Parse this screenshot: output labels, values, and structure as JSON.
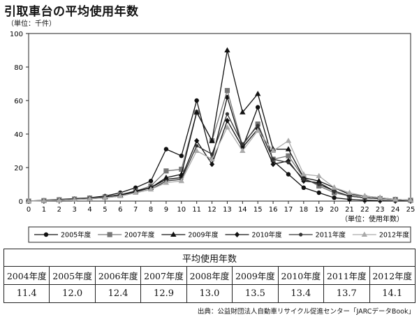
{
  "page": {
    "title": "引取車台の平均使用年数",
    "unit_label": "（単位：千件）",
    "source": "出典：公益財団法人自動車リサイクル促進センター「JARCデータBook」"
  },
  "chart_data": {
    "type": "line",
    "title": "引取車台の平均使用年数",
    "ylabel": "（単位：千件）",
    "xlabel": "（単位：使用年数）",
    "x": [
      0,
      1,
      2,
      3,
      4,
      5,
      6,
      7,
      8,
      9,
      10,
      11,
      12,
      13,
      14,
      15,
      16,
      17,
      18,
      19,
      20,
      21,
      22,
      23,
      24,
      25
    ],
    "xlim": [
      0,
      25
    ],
    "ylim": [
      0,
      100
    ],
    "yticks": [
      0,
      20,
      40,
      60,
      80,
      100
    ],
    "grid": false,
    "legend_position": "bottom",
    "series": [
      {
        "name": "2005年度",
        "marker": "circle",
        "color": "#111111",
        "values": [
          0,
          0.5,
          1,
          1.5,
          2,
          3,
          5,
          8,
          12,
          31,
          27,
          60,
          25,
          62,
          32,
          56,
          24,
          16,
          8,
          5,
          2,
          1,
          0.5,
          0.3,
          0.2,
          0.1
        ]
      },
      {
        "name": "2007年度",
        "marker": "square",
        "color": "#777777",
        "values": [
          0,
          0.3,
          0.8,
          1.2,
          1.8,
          2.5,
          4,
          6,
          9,
          18,
          19,
          53,
          36,
          66,
          33,
          46,
          25,
          27,
          14,
          9,
          5,
          3,
          2,
          1.5,
          1,
          0.5
        ]
      },
      {
        "name": "2009年度",
        "marker": "triangle",
        "color": "#111111",
        "values": [
          0,
          0.2,
          0.6,
          1,
          1.5,
          2.5,
          3.5,
          6,
          8,
          14,
          16,
          53,
          36,
          90,
          53,
          64,
          31,
          31,
          14,
          12,
          8,
          4,
          3,
          2,
          1,
          0.5
        ]
      },
      {
        "name": "2010年度",
        "marker": "diamond",
        "color": "#111111",
        "values": [
          0,
          0.2,
          0.6,
          1,
          1.5,
          2,
          3.5,
          5.5,
          8,
          13,
          14,
          36,
          22,
          48,
          32,
          43,
          22,
          24,
          12,
          11,
          6,
          3,
          2,
          1.5,
          1,
          0.5
        ]
      },
      {
        "name": "2011年度",
        "marker": "dot",
        "color": "#333333",
        "values": [
          0,
          0.2,
          0.5,
          1,
          1.4,
          2,
          3,
          5,
          7,
          12,
          13,
          33,
          28,
          52,
          34,
          45,
          25,
          23,
          13,
          10,
          6,
          3,
          2,
          1.5,
          1,
          0.5
        ]
      },
      {
        "name": "2012年度",
        "marker": "triangle",
        "color": "#aaaaaa",
        "values": [
          0,
          0.2,
          0.5,
          0.9,
          1.3,
          2,
          3,
          5,
          7,
          11,
          12,
          30,
          25,
          44,
          30,
          42,
          30,
          36,
          16,
          15,
          8,
          5,
          3,
          2,
          1,
          0.5
        ]
      }
    ]
  },
  "avg_table": {
    "caption": "平均使用年数",
    "years": [
      "2004年度",
      "2005年度",
      "2006年度",
      "2007年度",
      "2008年度",
      "2009年度",
      "2010年度",
      "2011年度",
      "2012年度"
    ],
    "values": [
      "11.4",
      "12.0",
      "12.4",
      "12.9",
      "13.0",
      "13.5",
      "13.4",
      "13.7",
      "14.1"
    ]
  }
}
